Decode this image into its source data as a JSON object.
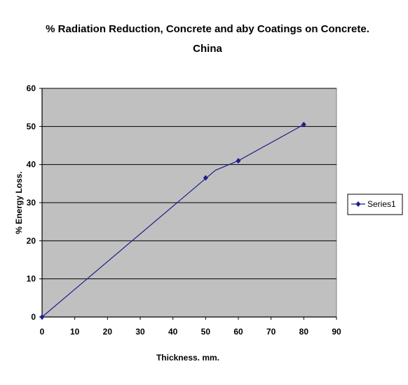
{
  "chart_data": {
    "type": "line",
    "title_line1": "% Radiation Reduction, Concrete and aby Coatings on Concrete.",
    "title_line2": "China",
    "xlabel": "Thickness. mm.",
    "ylabel": "% Energy Loss.",
    "xlim": [
      0,
      90
    ],
    "ylim": [
      0,
      60
    ],
    "xticks": [
      "0",
      "10",
      "20",
      "30",
      "40",
      "50",
      "60",
      "70",
      "80",
      "90"
    ],
    "yticks": [
      "0",
      "10",
      "20",
      "30",
      "40",
      "50",
      "60"
    ],
    "grid": "horizontal",
    "legend_position": "right",
    "series": [
      {
        "name": "Series1",
        "color": "#1f1f8f",
        "marker": "diamond",
        "line": [
          [
            0,
            0
          ],
          [
            53,
            38.5
          ],
          [
            60,
            41
          ],
          [
            80,
            50.5
          ]
        ],
        "points": [
          [
            0,
            0
          ],
          [
            50,
            36.5
          ],
          [
            60,
            41
          ],
          [
            80,
            50.5
          ]
        ]
      }
    ],
    "plot_background": "#c0c0c0"
  }
}
